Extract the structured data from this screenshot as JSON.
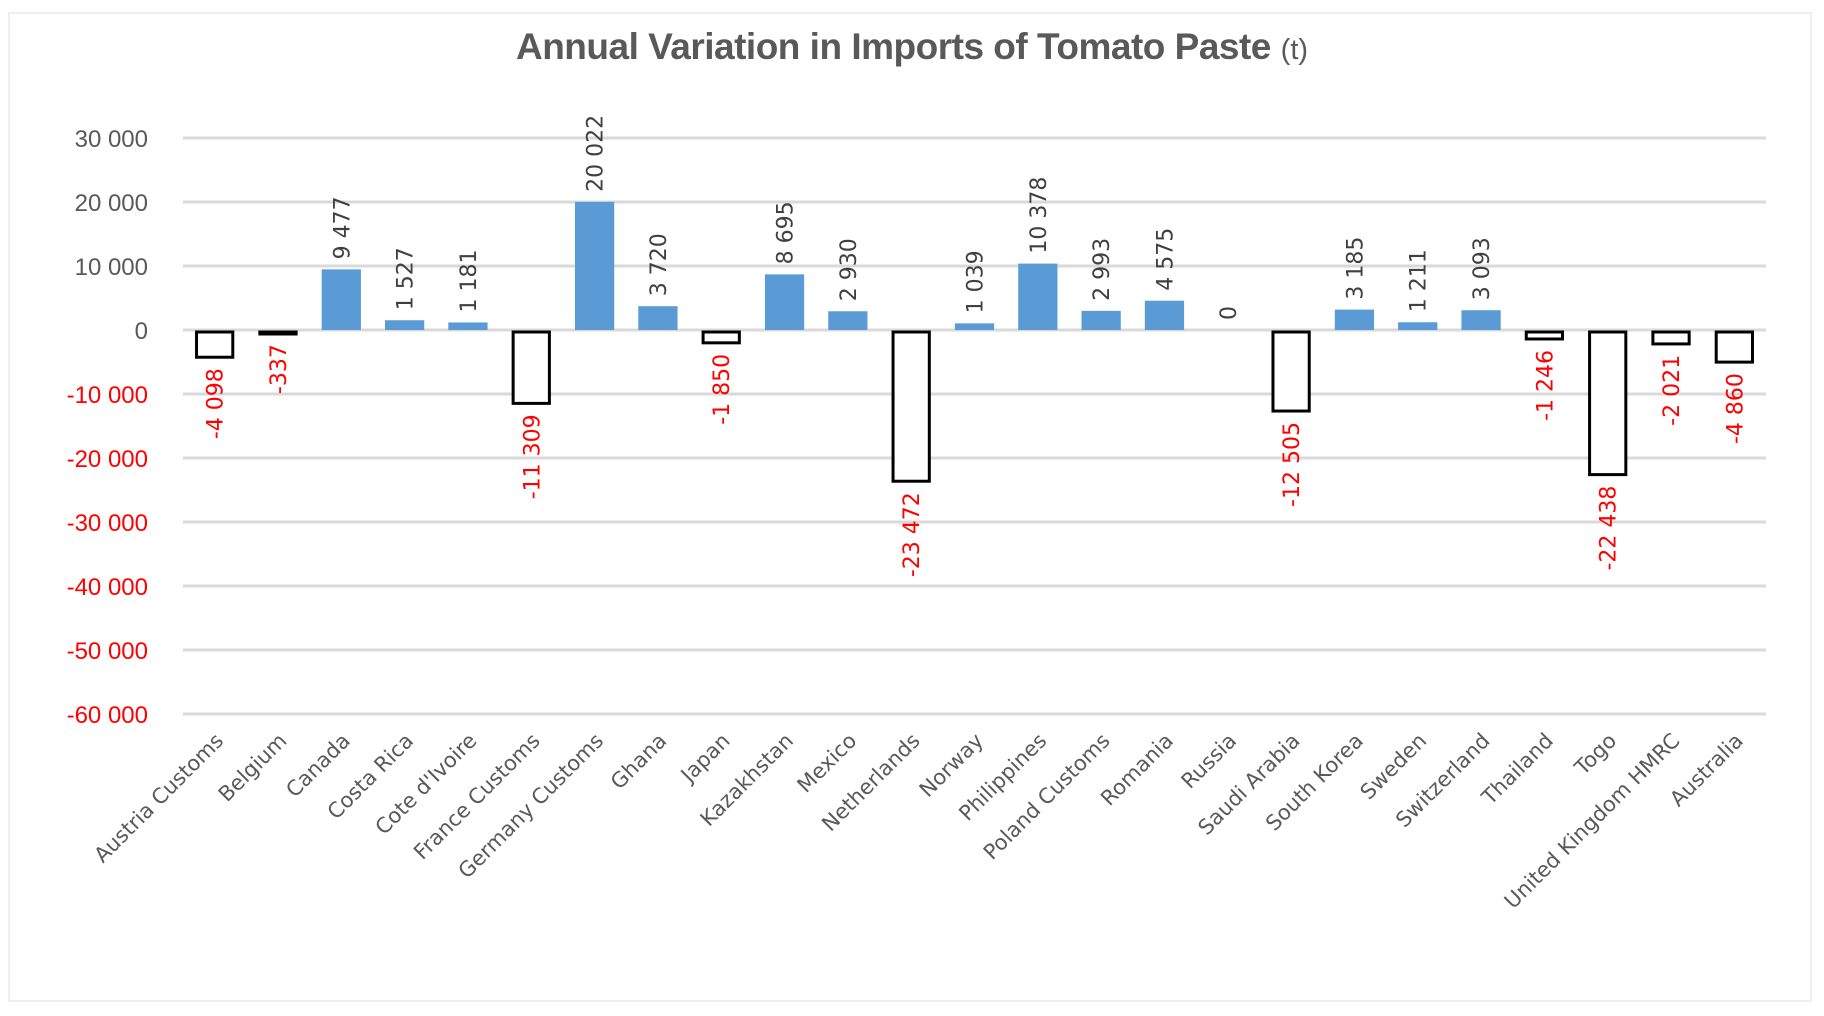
{
  "chart_data": {
    "type": "bar",
    "title": "Annual Variation in Imports of Tomato Paste",
    "title_unit": "(t)",
    "xlabel": "",
    "ylabel": "",
    "ylim": [
      -60000,
      30000
    ],
    "ytick_step": 10000,
    "yticks": [
      {
        "value": 30000,
        "label": "30 000"
      },
      {
        "value": 20000,
        "label": "20 000"
      },
      {
        "value": 10000,
        "label": "10 000"
      },
      {
        "value": 0,
        "label": "0"
      },
      {
        "value": -10000,
        "label": "-10 000"
      },
      {
        "value": -20000,
        "label": "-20 000"
      },
      {
        "value": -30000,
        "label": "-30 000"
      },
      {
        "value": -40000,
        "label": "-40 000"
      },
      {
        "value": -50000,
        "label": "-50 000"
      },
      {
        "value": -60000,
        "label": "-60 000"
      }
    ],
    "grid": true,
    "legend": "none",
    "categories": [
      "Austria Customs",
      "Belgium",
      "Canada",
      "Costa Rica",
      "Cote d'Ivoire",
      "France Customs",
      "Germany Customs",
      "Ghana",
      "Japan",
      "Kazakhstan",
      "Mexico",
      "Netherlands",
      "Norway",
      "Philippines",
      "Poland Customs",
      "Romania",
      "Russia",
      "Saudi Arabia",
      "South Korea",
      "Sweden",
      "Switzerland",
      "Thailand",
      "Togo",
      "United Kingdom HMRC",
      "Australia"
    ],
    "values": [
      -4098,
      -337,
      9477,
      1527,
      1181,
      -11309,
      20022,
      3720,
      -1850,
      8695,
      2930,
      -23472,
      1039,
      10378,
      2993,
      4575,
      0,
      -12505,
      3185,
      1211,
      3093,
      -1246,
      -22438,
      -2021,
      -4860
    ],
    "data_labels": [
      "-4 098",
      "-337",
      "9 477",
      "1 527",
      "1 181",
      "-11 309",
      "20 022",
      "3 720",
      "-1 850",
      "8 695",
      "2 930",
      "-23 472",
      "1 039",
      "10 378",
      "2 993",
      "4 575",
      "0",
      "-12 505",
      "3 185",
      "1 211",
      "3 093",
      "-1 246",
      "-22 438",
      "-2 021",
      "-4 860"
    ],
    "colors": {
      "positive_fill": "#5b9bd5",
      "negative_fill": "#ffffff",
      "negative_stroke": "#000000",
      "positive_label": "#404040",
      "negative_label": "#ff0000",
      "positive_tick": "#595959",
      "negative_tick": "#ff0000",
      "title": "#595959",
      "grid": "#d9d9d9"
    }
  }
}
